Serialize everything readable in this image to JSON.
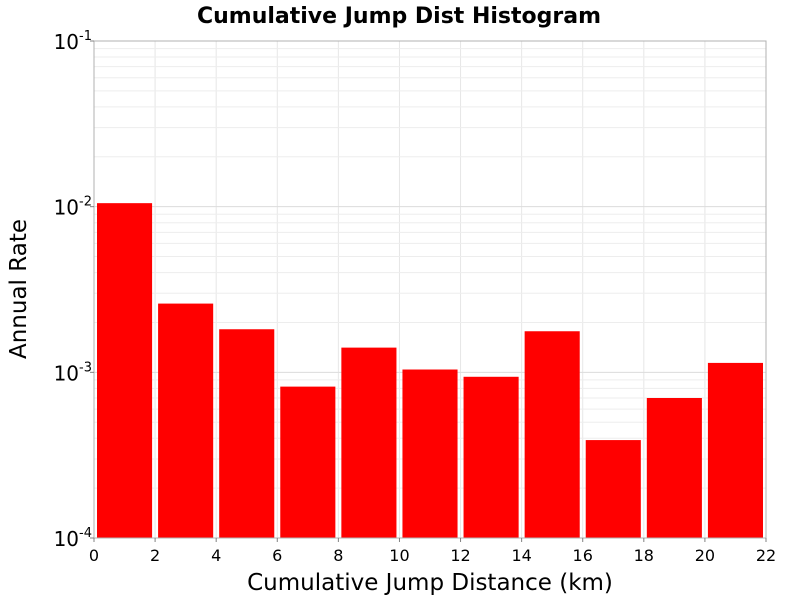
{
  "chart_data": {
    "type": "bar",
    "title": "Cumulative Jump Dist Histogram",
    "xlabel": "Cumulative Jump Distance (km)",
    "ylabel": "Annual Rate",
    "x_bin_edges": [
      0,
      2,
      4,
      6,
      8,
      10,
      12,
      14,
      16,
      18,
      20,
      22
    ],
    "values": [
      0.0105,
      0.0026,
      0.00182,
      0.00082,
      0.00141,
      0.00104,
      0.00094,
      0.00177,
      0.00039,
      0.0007,
      0.00114
    ],
    "xlim": [
      0,
      22
    ],
    "ylim": [
      0.0001,
      0.1
    ],
    "yscale": "log",
    "x_ticks": [
      "0",
      "2",
      "4",
      "6",
      "8",
      "10",
      "12",
      "14",
      "16",
      "18",
      "20",
      "22"
    ],
    "y_ticks": [
      {
        "base": "10",
        "exp": "-4"
      },
      {
        "base": "10",
        "exp": "-3"
      },
      {
        "base": "10",
        "exp": "-2"
      },
      {
        "base": "10",
        "exp": "-1"
      }
    ],
    "bar_color": "#ff0000",
    "grid": true,
    "legend": "none"
  }
}
